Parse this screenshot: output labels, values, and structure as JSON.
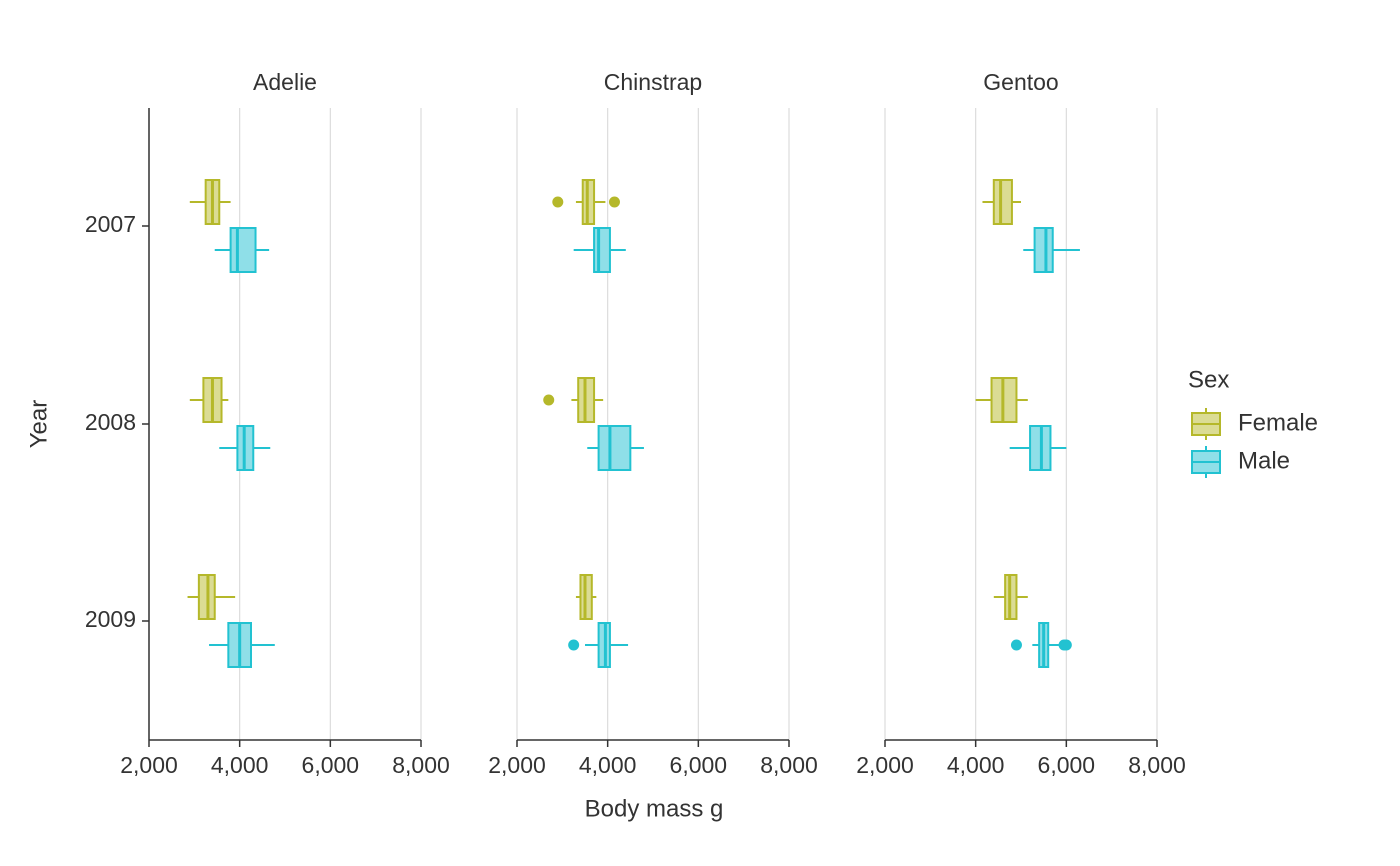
{
  "chart_data": {
    "type": "boxplot",
    "orientation": "horizontal",
    "xlabel": "Body mass g",
    "ylabel": "Year",
    "xlim": [
      2000,
      8000
    ],
    "x_ticks": [
      2000,
      4000,
      6000,
      8000
    ],
    "x_tick_labels": [
      "2,000",
      "4,000",
      "6,000",
      "8,000"
    ],
    "y_categories": [
      "2007",
      "2008",
      "2009"
    ],
    "grid": "vertical major lines",
    "legend": {
      "title": "Sex",
      "position": "right",
      "entries": [
        {
          "label": "Female",
          "color": "#b5b82a",
          "fill": "#dbdc94"
        },
        {
          "label": "Male",
          "color": "#22c2d1",
          "fill": "#8fdfe8"
        }
      ]
    },
    "facets": [
      {
        "title": "Adelie",
        "boxes": [
          {
            "year": "2007",
            "sex": "Female",
            "whisker_low": 2900,
            "q1": 3250,
            "median": 3400,
            "q3": 3550,
            "whisker_high": 3800,
            "outliers": []
          },
          {
            "year": "2007",
            "sex": "Male",
            "whisker_low": 3450,
            "q1": 3800,
            "median": 3950,
            "q3": 4350,
            "whisker_high": 4650,
            "outliers": []
          },
          {
            "year": "2008",
            "sex": "Female",
            "whisker_low": 2900,
            "q1": 3200,
            "median": 3400,
            "q3": 3600,
            "whisker_high": 3750,
            "outliers": []
          },
          {
            "year": "2008",
            "sex": "Male",
            "whisker_low": 3550,
            "q1": 3950,
            "median": 4100,
            "q3": 4300,
            "whisker_high": 4675,
            "outliers": []
          },
          {
            "year": "2009",
            "sex": "Female",
            "whisker_low": 2850,
            "q1": 3100,
            "median": 3300,
            "q3": 3450,
            "whisker_high": 3900,
            "outliers": []
          },
          {
            "year": "2009",
            "sex": "Male",
            "whisker_low": 3325,
            "q1": 3750,
            "median": 4000,
            "q3": 4250,
            "whisker_high": 4775,
            "outliers": []
          }
        ]
      },
      {
        "title": "Chinstrap",
        "boxes": [
          {
            "year": "2007",
            "sex": "Female",
            "whisker_low": 3300,
            "q1": 3450,
            "median": 3550,
            "q3": 3700,
            "whisker_high": 3950,
            "outliers": [
              2900,
              4150
            ]
          },
          {
            "year": "2007",
            "sex": "Male",
            "whisker_low": 3250,
            "q1": 3700,
            "median": 3800,
            "q3": 4050,
            "whisker_high": 4400,
            "outliers": []
          },
          {
            "year": "2008",
            "sex": "Female",
            "whisker_low": 3200,
            "q1": 3350,
            "median": 3500,
            "q3": 3700,
            "whisker_high": 3900,
            "outliers": [
              2700
            ]
          },
          {
            "year": "2008",
            "sex": "Male",
            "whisker_low": 3550,
            "q1": 3800,
            "median": 4050,
            "q3": 4500,
            "whisker_high": 4800,
            "outliers": []
          },
          {
            "year": "2009",
            "sex": "Female",
            "whisker_low": 3300,
            "q1": 3400,
            "median": 3500,
            "q3": 3650,
            "whisker_high": 3750,
            "outliers": []
          },
          {
            "year": "2009",
            "sex": "Male",
            "whisker_low": 3500,
            "q1": 3800,
            "median": 3950,
            "q3": 4050,
            "whisker_high": 4450,
            "outliers": [
              3250
            ]
          }
        ]
      },
      {
        "title": "Gentoo",
        "boxes": [
          {
            "year": "2007",
            "sex": "Female",
            "whisker_low": 4150,
            "q1": 4400,
            "median": 4550,
            "q3": 4800,
            "whisker_high": 5000,
            "outliers": []
          },
          {
            "year": "2007",
            "sex": "Male",
            "whisker_low": 5050,
            "q1": 5300,
            "median": 5550,
            "q3": 5700,
            "whisker_high": 6300,
            "outliers": []
          },
          {
            "year": "2008",
            "sex": "Female",
            "whisker_low": 4000,
            "q1": 4350,
            "median": 4600,
            "q3": 4900,
            "whisker_high": 5150,
            "outliers": []
          },
          {
            "year": "2008",
            "sex": "Male",
            "whisker_low": 4750,
            "q1": 5200,
            "median": 5450,
            "q3": 5650,
            "whisker_high": 6000,
            "outliers": []
          },
          {
            "year": "2009",
            "sex": "Female",
            "whisker_low": 4400,
            "q1": 4650,
            "median": 4750,
            "q3": 4900,
            "whisker_high": 5150,
            "outliers": []
          },
          {
            "year": "2009",
            "sex": "Male",
            "whisker_low": 5250,
            "q1": 5400,
            "median": 5500,
            "q3": 5600,
            "whisker_high": 5850,
            "outliers": [
              4900,
              5950,
              6000
            ]
          }
        ]
      }
    ]
  }
}
